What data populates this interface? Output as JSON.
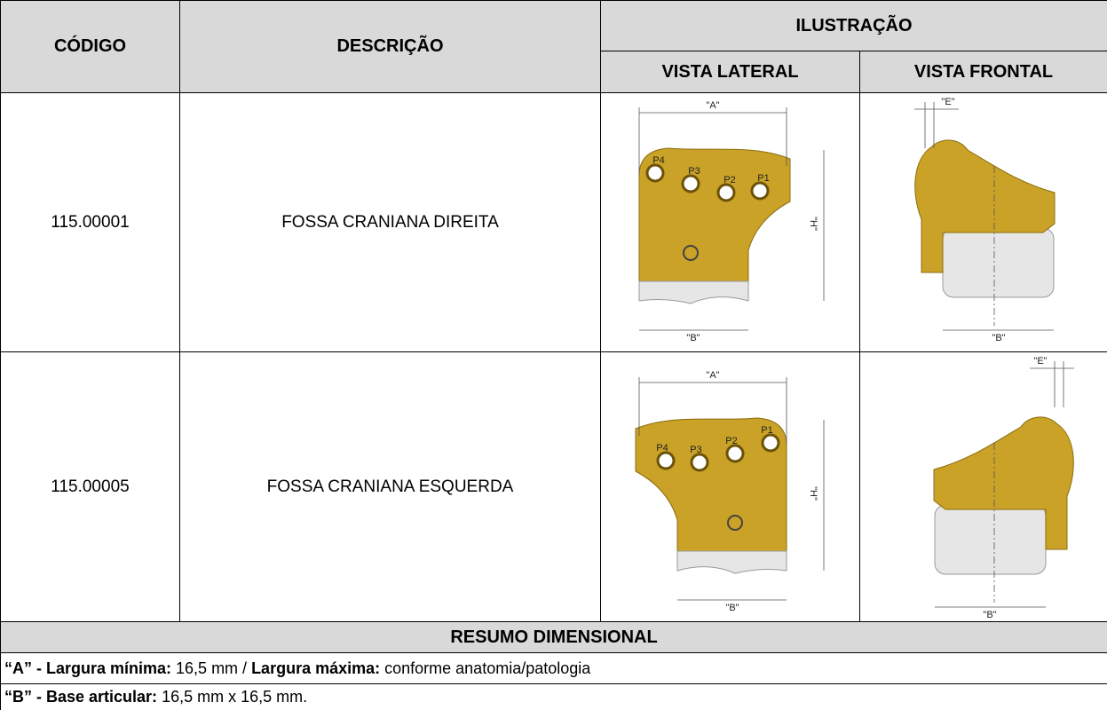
{
  "table": {
    "header": {
      "code": "CÓDIGO",
      "description": "DESCRIÇÃO",
      "illustration": "ILUSTRAÇÃO",
      "lateral": "VISTA LATERAL",
      "frontal": "VISTA FRONTAL"
    },
    "rows": [
      {
        "code": "115.00001",
        "description": "FOSSA CRANIANA DIREITA",
        "lateral_labels": [
          "\"A\"",
          "\"H\"",
          "\"B\"",
          "P4",
          "P3",
          "P2",
          "P1"
        ],
        "frontal_labels": [
          "\"E\"",
          "\"B\""
        ]
      },
      {
        "code": "115.00005",
        "description": "FOSSA CRANIANA ESQUERDA",
        "lateral_labels": [
          "\"A\"",
          "\"H\"",
          "\"B\"",
          "P1",
          "P2",
          "P3",
          "P4"
        ],
        "frontal_labels": [
          "\"E\"",
          "\"B\""
        ]
      }
    ],
    "summary": {
      "title": "RESUMO DIMENSIONAL",
      "lines": [
        [
          {
            "text": "“A” - Largura mínima:",
            "bold": true
          },
          {
            "text": " 16,5 mm / ",
            "bold": false
          },
          {
            "text": "Largura máxima:",
            "bold": true
          },
          {
            "text": " conforme anatomia/patologia",
            "bold": false
          }
        ],
        [
          {
            "text": "“B” - Base articular:",
            "bold": true
          },
          {
            "text": " 16,5 mm x 16,5 mm.",
            "bold": false
          }
        ]
      ]
    }
  }
}
